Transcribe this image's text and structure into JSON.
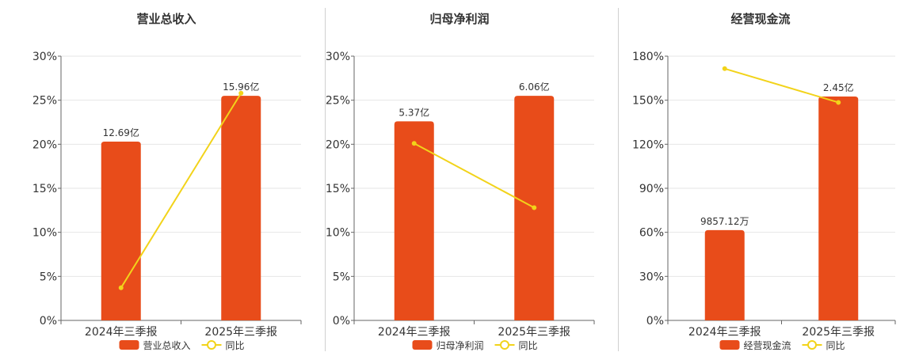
{
  "colors": {
    "bar": "#E84C1A",
    "line": "#F2D31A",
    "grid": "#e6e6e6",
    "axis": "#666666",
    "text": "#333333"
  },
  "chart_data": [
    {
      "type": "bar",
      "title": "营业总收入",
      "categories": [
        "2024年三季报",
        "2025年三季报"
      ],
      "series": [
        {
          "name": "营业总收入",
          "type": "bar",
          "values": [
            20.3,
            25.5
          ],
          "labels": [
            "12.69亿",
            "15.96亿"
          ]
        },
        {
          "name": "同比",
          "type": "line",
          "values": [
            3.7,
            25.8
          ]
        }
      ],
      "yticks": [
        "0%",
        "5%",
        "10%",
        "15%",
        "20%",
        "25%",
        "30%"
      ],
      "ylim": [
        0,
        30
      ],
      "grid": true,
      "legend": "bottom"
    },
    {
      "type": "bar",
      "title": "归母净利润",
      "categories": [
        "2024年三季报",
        "2025年三季报"
      ],
      "series": [
        {
          "name": "归母净利润",
          "type": "bar",
          "values": [
            22.6,
            25.5
          ],
          "labels": [
            "5.37亿",
            "6.06亿"
          ]
        },
        {
          "name": "同比",
          "type": "line",
          "values": [
            20.1,
            12.8
          ]
        }
      ],
      "yticks": [
        "0%",
        "5%",
        "10%",
        "15%",
        "20%",
        "25%",
        "30%"
      ],
      "ylim": [
        0,
        30
      ],
      "grid": true,
      "legend": "bottom"
    },
    {
      "type": "bar",
      "title": "经营现金流",
      "categories": [
        "2024年三季报",
        "2025年三季报"
      ],
      "series": [
        {
          "name": "经营现金流",
          "type": "bar",
          "values": [
            61.5,
            152.5
          ],
          "labels": [
            "9857.12万",
            "2.45亿"
          ]
        },
        {
          "name": "同比",
          "type": "line",
          "values": [
            171.5,
            148.5
          ]
        }
      ],
      "yticks": [
        "0%",
        "30%",
        "60%",
        "90%",
        "120%",
        "150%",
        "180%"
      ],
      "ylim": [
        0,
        180
      ],
      "grid": true,
      "legend": "bottom"
    }
  ]
}
